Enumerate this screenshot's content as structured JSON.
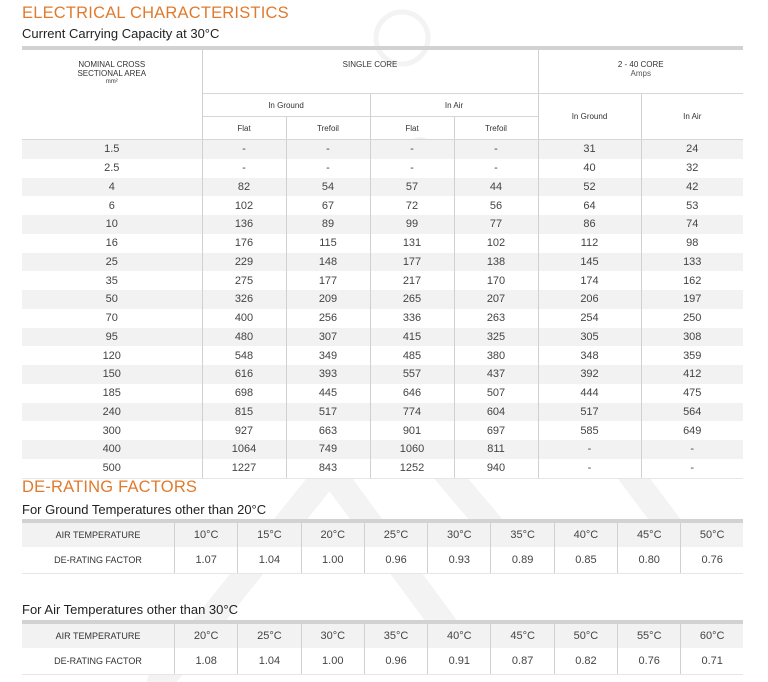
{
  "electrical": {
    "title": "ELECTRICAL CHARACTERISTICS",
    "subtitle": "Current Carrying Capacity at 30°C",
    "header": {
      "nominal_line1": "NOMINAL CROSS",
      "nominal_line2": "SECTIONAL AREA",
      "nominal_unit": "mm²",
      "single_core": "SINGLE CORE",
      "multi_core": "2 - 40 CORE",
      "amps": "Amps",
      "in_ground": "In Ground",
      "in_air": "In Air",
      "flat": "Flat",
      "trefoil": "Trefoil",
      "mc_in_ground": "In Ground",
      "mc_in_air": "In Air"
    },
    "rows": [
      [
        "1.5",
        "-",
        "-",
        "-",
        "-",
        "31",
        "24"
      ],
      [
        "2.5",
        "-",
        "-",
        "-",
        "-",
        "40",
        "32"
      ],
      [
        "4",
        "82",
        "54",
        "57",
        "44",
        "52",
        "42"
      ],
      [
        "6",
        "102",
        "67",
        "72",
        "56",
        "64",
        "53"
      ],
      [
        "10",
        "136",
        "89",
        "99",
        "77",
        "86",
        "74"
      ],
      [
        "16",
        "176",
        "115",
        "131",
        "102",
        "112",
        "98"
      ],
      [
        "25",
        "229",
        "148",
        "177",
        "138",
        "145",
        "133"
      ],
      [
        "35",
        "275",
        "177",
        "217",
        "170",
        "174",
        "162"
      ],
      [
        "50",
        "326",
        "209",
        "265",
        "207",
        "206",
        "197"
      ],
      [
        "70",
        "400",
        "256",
        "336",
        "263",
        "254",
        "250"
      ],
      [
        "95",
        "480",
        "307",
        "415",
        "325",
        "305",
        "308"
      ],
      [
        "120",
        "548",
        "349",
        "485",
        "380",
        "348",
        "359"
      ],
      [
        "150",
        "616",
        "393",
        "557",
        "437",
        "392",
        "412"
      ],
      [
        "185",
        "698",
        "445",
        "646",
        "507",
        "444",
        "475"
      ],
      [
        "240",
        "815",
        "517",
        "774",
        "604",
        "517",
        "564"
      ],
      [
        "300",
        "927",
        "663",
        "901",
        "697",
        "585",
        "649"
      ],
      [
        "400",
        "1064",
        "749",
        "1060",
        "811",
        "-",
        "-"
      ],
      [
        "500",
        "1227",
        "843",
        "1252",
        "940",
        "-",
        "-"
      ]
    ]
  },
  "derating": {
    "title": "DE-RATING FACTORS",
    "ground": {
      "subtitle": "For Ground Temperatures other than 20°C",
      "temp_label": "AIR TEMPERATURE",
      "factor_label": "DE-RATING FACTOR",
      "temps": [
        "10°C",
        "15°C",
        "20°C",
        "25°C",
        "30°C",
        "35°C",
        "40°C",
        "45°C",
        "50°C"
      ],
      "factors": [
        "1.07",
        "1.04",
        "1.00",
        "0.96",
        "0.93",
        "0.89",
        "0.85",
        "0.80",
        "0.76"
      ]
    },
    "air": {
      "subtitle": "For Air Temperatures other than 30°C",
      "temp_label": "AIR TEMPERATURE",
      "factor_label": "DE-RATING FACTOR",
      "temps": [
        "20°C",
        "25°C",
        "30°C",
        "35°C",
        "40°C",
        "45°C",
        "50°C",
        "55°C",
        "60°C"
      ],
      "factors": [
        "1.08",
        "1.04",
        "1.00",
        "0.96",
        "0.91",
        "0.87",
        "0.82",
        "0.76",
        "0.71"
      ]
    }
  }
}
